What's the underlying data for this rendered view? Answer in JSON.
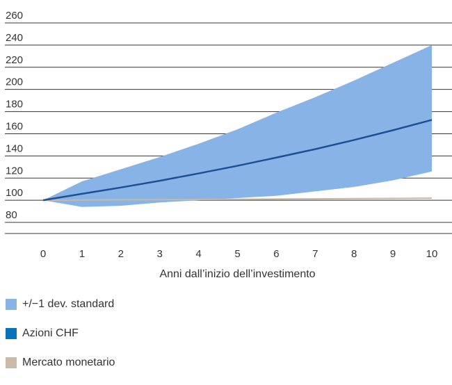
{
  "chart_data": {
    "type": "area",
    "xlabel": "Anni dall’inizio dell’investimento",
    "ylabel": "",
    "x": [
      0,
      1,
      2,
      3,
      4,
      5,
      6,
      7,
      8,
      9,
      10
    ],
    "xlim": [
      0,
      10
    ],
    "ylim": [
      70,
      260
    ],
    "yticks": [
      80,
      100,
      120,
      140,
      160,
      180,
      200,
      220,
      240,
      260
    ],
    "grid": true,
    "legend_position": "bottom-left",
    "series": [
      {
        "name": "+/−1 dev. standard",
        "type": "band",
        "color": "#87b3e6",
        "upper": [
          100,
          117,
          128,
          139,
          151,
          164,
          179,
          193,
          208,
          224,
          240
        ],
        "lower": [
          100,
          94,
          95,
          98,
          100,
          102,
          104,
          108,
          112,
          118,
          126
        ]
      },
      {
        "name": "Azioni CHF",
        "type": "line",
        "color": "#1f4e96",
        "values": [
          100,
          105.8,
          111.5,
          117.6,
          124.2,
          131.1,
          138.5,
          146.1,
          154.4,
          163.2,
          172.5
        ]
      },
      {
        "name": "Mercato monetario",
        "type": "line",
        "color": "#c8b8a6",
        "values": [
          100,
          100.2,
          100.4,
          100.6,
          100.7,
          100.9,
          101.1,
          101.3,
          101.5,
          101.7,
          101.9
        ]
      }
    ]
  },
  "legend": {
    "items": [
      {
        "label": "+/−1 dev. standard",
        "color": "#87b3e6"
      },
      {
        "label": "Azioni CHF",
        "color": "#0c72b8"
      },
      {
        "label": "Mercato monetario",
        "color": "#cbbba9"
      }
    ]
  }
}
